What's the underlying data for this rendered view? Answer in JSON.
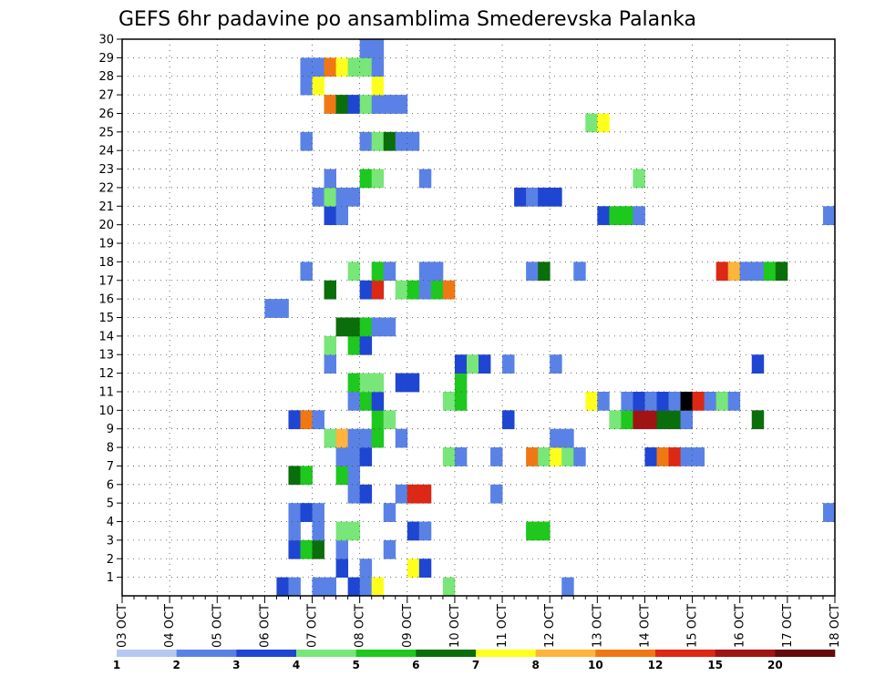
{
  "chart_data": {
    "type": "heatmap",
    "title": "GEFS 6hr padavine po ansamblima Smederevska Palanka",
    "x_tick_labels": [
      "03 OCT",
      "04 OCT",
      "05 OCT",
      "06 OCT",
      "07 OCT",
      "08 OCT",
      "09 OCT",
      "10 OCT",
      "11 OCT",
      "12 OCT",
      "13 OCT",
      "14 OCT",
      "15 OCT",
      "16 OCT",
      "17 OCT",
      "18 OCT"
    ],
    "x_range_days": [
      0,
      15
    ],
    "step_days": 0.25,
    "y_range": [
      0,
      30
    ],
    "y_tick_labels": [
      1,
      2,
      3,
      4,
      5,
      6,
      7,
      8,
      9,
      10,
      11,
      12,
      13,
      14,
      15,
      16,
      17,
      18,
      19,
      20,
      21,
      22,
      23,
      24,
      25,
      26,
      27,
      28,
      29,
      30
    ],
    "grid": true,
    "colorbar": {
      "labels": [
        "1",
        "2",
        "3",
        "4",
        "5",
        "6",
        "7",
        "8",
        "10",
        "12",
        "15",
        "20"
      ],
      "colors": [
        "#b4c8f0",
        "#5a82e6",
        "#1e46d2",
        "#78e678",
        "#1ec81e",
        "#0a6e0a",
        "#ffff1e",
        "#ffb43c",
        "#f07814",
        "#dc2814",
        "#a01414",
        "#640a0a"
      ]
    },
    "cells": [
      [
        0,
        3.25,
        2
      ],
      [
        0,
        3.5,
        1
      ],
      [
        0,
        4.0,
        1
      ],
      [
        0,
        4.25,
        1
      ],
      [
        0,
        4.75,
        2
      ],
      [
        0,
        5.0,
        1
      ],
      [
        0,
        5.25,
        6
      ],
      [
        0,
        6.75,
        3
      ],
      [
        0,
        9.25,
        1
      ],
      [
        1,
        4.5,
        2
      ],
      [
        1,
        5.0,
        1
      ],
      [
        1,
        6.0,
        6
      ],
      [
        1,
        6.25,
        2
      ],
      [
        2,
        3.5,
        2
      ],
      [
        2,
        3.75,
        4
      ],
      [
        2,
        4.0,
        5
      ],
      [
        2,
        4.5,
        1
      ],
      [
        2,
        5.5,
        1
      ],
      [
        3,
        3.5,
        1
      ],
      [
        3,
        4.0,
        1
      ],
      [
        3,
        4.5,
        3
      ],
      [
        3,
        4.75,
        3
      ],
      [
        3,
        6.0,
        2
      ],
      [
        3,
        6.25,
        1
      ],
      [
        3,
        8.5,
        4
      ],
      [
        3,
        8.75,
        4
      ],
      [
        4,
        3.5,
        1
      ],
      [
        4,
        3.75,
        2
      ],
      [
        4,
        4.0,
        1
      ],
      [
        4,
        5.5,
        1
      ],
      [
        4,
        14.75,
        1
      ],
      [
        5,
        4.75,
        1
      ],
      [
        5,
        5.0,
        2
      ],
      [
        5,
        5.75,
        1
      ],
      [
        5,
        6.0,
        9
      ],
      [
        5,
        6.25,
        9
      ],
      [
        5,
        7.75,
        1
      ],
      [
        6,
        3.5,
        5
      ],
      [
        6,
        3.75,
        4
      ],
      [
        6,
        4.5,
        4
      ],
      [
        6,
        4.75,
        1
      ],
      [
        7,
        4.5,
        1
      ],
      [
        7,
        4.75,
        1
      ],
      [
        7,
        5.0,
        2
      ],
      [
        7,
        6.75,
        3
      ],
      [
        7,
        7.0,
        1
      ],
      [
        7,
        7.75,
        1
      ],
      [
        7,
        8.5,
        8
      ],
      [
        7,
        8.75,
        3
      ],
      [
        7,
        9.0,
        6
      ],
      [
        7,
        9.25,
        3
      ],
      [
        7,
        9.5,
        1
      ],
      [
        7,
        11.0,
        2
      ],
      [
        7,
        11.25,
        8
      ],
      [
        7,
        11.5,
        9
      ],
      [
        7,
        11.75,
        1
      ],
      [
        7,
        12.0,
        1
      ],
      [
        8,
        4.25,
        3
      ],
      [
        8,
        4.5,
        7
      ],
      [
        8,
        4.75,
        1
      ],
      [
        8,
        5.0,
        1
      ],
      [
        8,
        5.25,
        4
      ],
      [
        8,
        5.75,
        1
      ],
      [
        8,
        9.0,
        1
      ],
      [
        8,
        9.25,
        1
      ],
      [
        9,
        3.5,
        2
      ],
      [
        9,
        3.75,
        8
      ],
      [
        9,
        4.0,
        1
      ],
      [
        9,
        5.25,
        4
      ],
      [
        9,
        5.5,
        3
      ],
      [
        9,
        8.0,
        2
      ],
      [
        9,
        10.25,
        3
      ],
      [
        9,
        10.5,
        4
      ],
      [
        9,
        10.75,
        10
      ],
      [
        9,
        11.0,
        10
      ],
      [
        9,
        11.25,
        5
      ],
      [
        9,
        11.5,
        5
      ],
      [
        9,
        11.75,
        1
      ],
      [
        9,
        13.25,
        5
      ],
      [
        10,
        4.75,
        1
      ],
      [
        10,
        5.0,
        4
      ],
      [
        10,
        5.25,
        2
      ],
      [
        10,
        6.75,
        3
      ],
      [
        10,
        7.0,
        4
      ],
      [
        10,
        9.75,
        6
      ],
      [
        10,
        10.0,
        1
      ],
      [
        10,
        10.5,
        1
      ],
      [
        10,
        10.75,
        2
      ],
      [
        10,
        11.0,
        1
      ],
      [
        10,
        11.25,
        2
      ],
      [
        10,
        11.5,
        1
      ],
      [
        10,
        11.75,
        12
      ],
      [
        10,
        12.0,
        9
      ],
      [
        10,
        12.25,
        1
      ],
      [
        10,
        12.5,
        3
      ],
      [
        10,
        12.75,
        1
      ],
      [
        11,
        4.75,
        4
      ],
      [
        11,
        5.0,
        3
      ],
      [
        11,
        5.25,
        3
      ],
      [
        11,
        5.75,
        2
      ],
      [
        11,
        6.0,
        2
      ],
      [
        11,
        7.0,
        4
      ],
      [
        12,
        4.25,
        1
      ],
      [
        12,
        7.0,
        2
      ],
      [
        12,
        7.25,
        3
      ],
      [
        12,
        7.5,
        2
      ],
      [
        12,
        8.0,
        1
      ],
      [
        12,
        9.0,
        1
      ],
      [
        12,
        13.25,
        2
      ],
      [
        13,
        4.25,
        3
      ],
      [
        13,
        4.75,
        4
      ],
      [
        13,
        5.0,
        2
      ],
      [
        14,
        4.5,
        5
      ],
      [
        14,
        4.75,
        5
      ],
      [
        14,
        5.0,
        4
      ],
      [
        14,
        5.25,
        1
      ],
      [
        14,
        5.5,
        1
      ],
      [
        15,
        3.0,
        1
      ],
      [
        15,
        3.25,
        1
      ],
      [
        16,
        4.25,
        5
      ],
      [
        16,
        5.0,
        2
      ],
      [
        16,
        5.25,
        9
      ],
      [
        16,
        5.75,
        3
      ],
      [
        16,
        6.0,
        4
      ],
      [
        16,
        6.25,
        1
      ],
      [
        16,
        6.5,
        4
      ],
      [
        16,
        6.75,
        8
      ],
      [
        17,
        3.75,
        1
      ],
      [
        17,
        4.75,
        3
      ],
      [
        17,
        5.25,
        4
      ],
      [
        17,
        5.5,
        1
      ],
      [
        17,
        6.25,
        1
      ],
      [
        17,
        6.5,
        1
      ],
      [
        17,
        8.5,
        1
      ],
      [
        17,
        8.75,
        5
      ],
      [
        17,
        9.5,
        1
      ],
      [
        17,
        12.5,
        9
      ],
      [
        17,
        12.75,
        7
      ],
      [
        17,
        13.0,
        1
      ],
      [
        17,
        13.25,
        1
      ],
      [
        17,
        13.5,
        4
      ],
      [
        17,
        13.75,
        5
      ],
      [
        20,
        4.25,
        2
      ],
      [
        20,
        4.5,
        1
      ],
      [
        20,
        10.0,
        2
      ],
      [
        20,
        10.25,
        4
      ],
      [
        20,
        10.5,
        4
      ],
      [
        20,
        10.75,
        1
      ],
      [
        20,
        14.75,
        1
      ],
      [
        21,
        4.0,
        1
      ],
      [
        21,
        4.25,
        3
      ],
      [
        21,
        4.5,
        1
      ],
      [
        21,
        4.75,
        1
      ],
      [
        21,
        8.25,
        2
      ],
      [
        21,
        8.5,
        1
      ],
      [
        21,
        8.75,
        2
      ],
      [
        21,
        9.0,
        2
      ],
      [
        22,
        4.25,
        1
      ],
      [
        22,
        5.0,
        4
      ],
      [
        22,
        5.25,
        3
      ],
      [
        22,
        6.25,
        1
      ],
      [
        22,
        10.75,
        3
      ],
      [
        24,
        3.75,
        1
      ],
      [
        24,
        5.0,
        1
      ],
      [
        24,
        5.25,
        3
      ],
      [
        24,
        5.5,
        5
      ],
      [
        24,
        5.75,
        1
      ],
      [
        24,
        6.0,
        1
      ],
      [
        25,
        9.75,
        3
      ],
      [
        25,
        10.0,
        6
      ],
      [
        26,
        4.25,
        8
      ],
      [
        26,
        4.5,
        5
      ],
      [
        26,
        4.75,
        2
      ],
      [
        26,
        5.0,
        3
      ],
      [
        26,
        5.25,
        1
      ],
      [
        26,
        5.5,
        1
      ],
      [
        26,
        5.75,
        1
      ],
      [
        27,
        3.75,
        1
      ],
      [
        27,
        4.0,
        6
      ],
      [
        27,
        5.25,
        6
      ],
      [
        28,
        3.75,
        1
      ],
      [
        28,
        4.0,
        1
      ],
      [
        28,
        4.25,
        8
      ],
      [
        28,
        4.5,
        6
      ],
      [
        28,
        4.75,
        3
      ],
      [
        28,
        5.0,
        3
      ],
      [
        28,
        5.25,
        1
      ],
      [
        29,
        5.0,
        1
      ],
      [
        29,
        5.25,
        1
      ]
    ]
  }
}
